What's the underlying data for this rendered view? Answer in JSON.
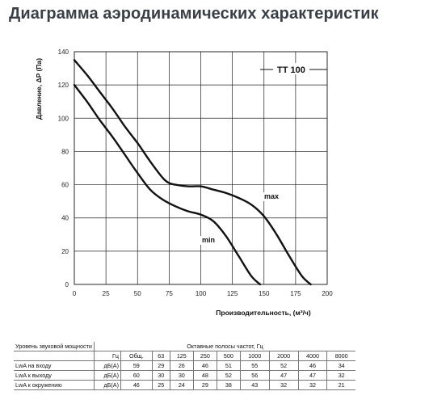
{
  "heading": "Диаграмма аэродинамических характеристик",
  "chart_data": {
    "type": "line",
    "title": "TT 100",
    "xlabel": "Производительность, (м³/ч)",
    "ylabel": "Давление, ΔP (Па)",
    "xlim": [
      0,
      200
    ],
    "ylim": [
      0,
      140
    ],
    "xticks": [
      0,
      25,
      50,
      75,
      100,
      125,
      150,
      175,
      200
    ],
    "yticks": [
      0,
      20,
      40,
      60,
      80,
      100,
      120,
      140
    ],
    "grid": true,
    "series": [
      {
        "name": "max",
        "x": [
          0,
          10,
          20,
          30,
          40,
          50,
          60,
          70,
          75,
          80,
          90,
          100,
          110,
          120,
          130,
          140,
          150,
          160,
          170,
          180,
          187
        ],
        "y": [
          135,
          126,
          116,
          106,
          95,
          85,
          74,
          64,
          61,
          60,
          59,
          59,
          57,
          55,
          52,
          48,
          41,
          30,
          17,
          5,
          0
        ]
      },
      {
        "name": "min",
        "x": [
          0,
          10,
          20,
          30,
          40,
          50,
          60,
          70,
          80,
          90,
          100,
          110,
          120,
          130,
          140,
          147
        ],
        "y": [
          120,
          110,
          99,
          89,
          78,
          67,
          57,
          51,
          47,
          44,
          42,
          38,
          29,
          17,
          5,
          0
        ]
      }
    ]
  },
  "table": {
    "header_label": "Уровень звуковой мощности",
    "header_span": "Октавные полосы частот, Гц",
    "unit_hz": "Гц",
    "columns": [
      "Общ.",
      "63",
      "125",
      "250",
      "500",
      "1000",
      "2000",
      "4000",
      "8000"
    ],
    "rows": [
      {
        "label": "LwA на входу",
        "unit": "дБ(A)",
        "values": [
          "59",
          "29",
          "26",
          "46",
          "51",
          "55",
          "52",
          "46",
          "34"
        ]
      },
      {
        "label": "LwA к выходу",
        "unit": "дБ(A)",
        "values": [
          "60",
          "30",
          "30",
          "48",
          "52",
          "56",
          "47",
          "47",
          "32"
        ]
      },
      {
        "label": "LwA к окружению",
        "unit": "дБ(A)",
        "values": [
          "46",
          "25",
          "24",
          "29",
          "38",
          "43",
          "32",
          "32",
          "21"
        ]
      }
    ]
  }
}
